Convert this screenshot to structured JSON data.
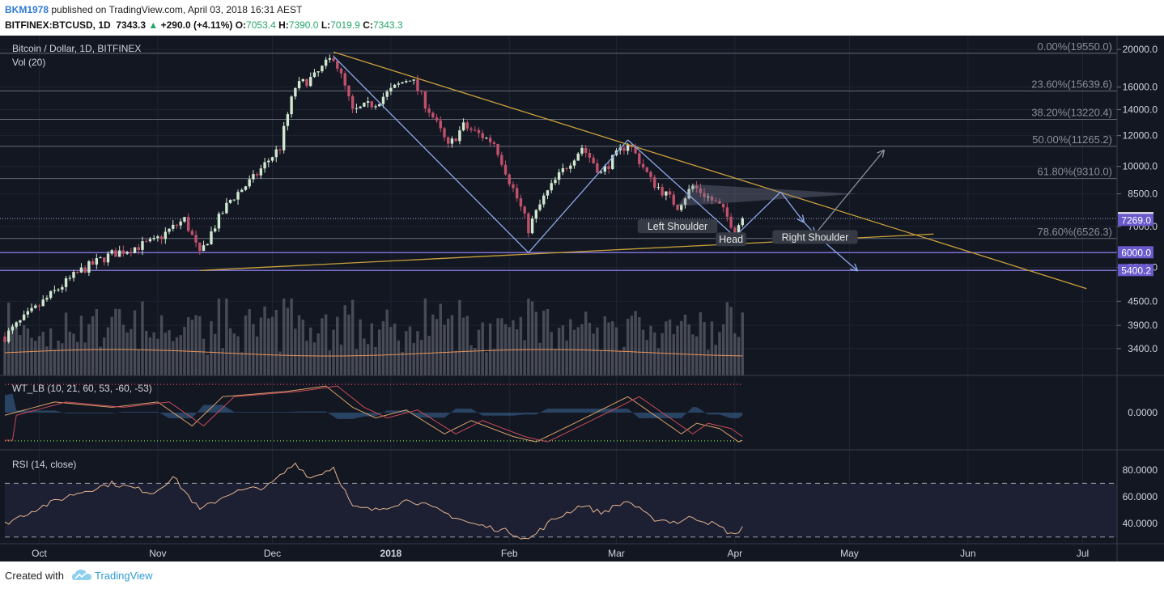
{
  "header": {
    "author": "BKM1978",
    "published_text": " published on TradingView.com, April 03, 2018 16:31 AEST",
    "symbol": "BITFINEX:BTCUSD, 1D",
    "last": "7343.3",
    "arrow": "▲",
    "change": "+290.0 (+4.11%)",
    "open_label": "O:",
    "open": "7053.4",
    "high_label": "H:",
    "high": "7390.0",
    "low_label": "L:",
    "low": "7019.9",
    "close_label": "C:",
    "close": "7343.3"
  },
  "footer": {
    "created_with": "Created with",
    "brand": "TradingView"
  },
  "colors": {
    "background": "#131722",
    "grid": "#1f2433",
    "up": "#cfe8cf",
    "down": "#c1506a",
    "trendline": "#c9a13a",
    "pattern": "#8ea7e8",
    "fib": "#666b7a",
    "level_purple": "#7c6fd0",
    "volume": "#5b5e68",
    "vol_ma": "#e6935a",
    "rsi": "#e3b48f"
  },
  "chart_data": {
    "type": "candlestick",
    "title": "Bitcoin / Dollar, 1D, BITFINEX",
    "price_axis": {
      "scale": "log",
      "range": [
        2900,
        21500
      ],
      "ticks": [
        "20000.0",
        "16000.0",
        "14000.0",
        "12000.0",
        "10000.0",
        "8500.0",
        "7000.0",
        "5500.0",
        "4500.0",
        "3900.0",
        "3400.0"
      ]
    },
    "time_axis": {
      "labels": [
        {
          "text": "Oct",
          "date": "2017-10-01"
        },
        {
          "text": "Nov",
          "date": "2017-11-01"
        },
        {
          "text": "Dec",
          "date": "2017-12-01"
        },
        {
          "text": "2018",
          "date": "2018-01-01",
          "bold": true
        },
        {
          "text": "Feb",
          "date": "2018-02-01"
        },
        {
          "text": "Mar",
          "date": "2018-03-01"
        },
        {
          "text": "Apr",
          "date": "2018-04-01"
        },
        {
          "text": "May",
          "date": "2018-05-01"
        },
        {
          "text": "Jun",
          "date": "2018-06-01"
        },
        {
          "text": "Jul",
          "date": "2018-07-01"
        }
      ]
    },
    "price_path": [
      [
        "2017-09-22",
        3650
      ],
      [
        "2017-09-30",
        4300
      ],
      [
        "2017-10-12",
        5400
      ],
      [
        "2017-10-20",
        5950
      ],
      [
        "2017-10-31",
        6400
      ],
      [
        "2017-11-08",
        7300
      ],
      [
        "2017-11-12",
        5900
      ],
      [
        "2017-11-20",
        8200
      ],
      [
        "2017-11-26",
        9300
      ],
      [
        "2017-12-03",
        11200
      ],
      [
        "2017-12-07",
        16000
      ],
      [
        "2017-12-12",
        17000
      ],
      [
        "2017-12-17",
        19200
      ],
      [
        "2017-12-22",
        13800
      ],
      [
        "2017-12-28",
        14600
      ],
      [
        "2018-01-06",
        17000
      ],
      [
        "2018-01-10",
        14500
      ],
      [
        "2018-01-16",
        11200
      ],
      [
        "2018-01-20",
        12700
      ],
      [
        "2018-01-28",
        11500
      ],
      [
        "2018-02-01",
        9200
      ],
      [
        "2018-02-06",
        6900
      ],
      [
        "2018-02-10",
        8300
      ],
      [
        "2018-02-20",
        11200
      ],
      [
        "2018-02-25",
        9600
      ],
      [
        "2018-03-04",
        11500
      ],
      [
        "2018-03-10",
        9200
      ],
      [
        "2018-03-17",
        7900
      ],
      [
        "2018-03-21",
        8900
      ],
      [
        "2018-03-28",
        7900
      ],
      [
        "2018-04-01",
        6900
      ],
      [
        "2018-04-03",
        7343
      ]
    ],
    "last_price": 7343.3,
    "price_labels": [
      {
        "text": "7343.3",
        "value": 7343.3,
        "style": "last"
      },
      {
        "text": "7269.0",
        "value": 7269.0,
        "style": "purple"
      },
      {
        "text": "6000.0",
        "value": 6000.0,
        "style": "purple"
      },
      {
        "text": "5400.2",
        "value": 5400.2,
        "style": "purple"
      }
    ],
    "fib_levels": [
      {
        "label": "0.00%(19550.0)",
        "value": 19550.0
      },
      {
        "label": "23.60%(15639.6)",
        "value": 15639.6
      },
      {
        "label": "38.20%(13220.4)",
        "value": 13220.4
      },
      {
        "label": "50.00%(11265.2)",
        "value": 11265.2
      },
      {
        "label": "61.80%(9310.0)",
        "value": 9310.0
      },
      {
        "label": "78.60%(6526.3)",
        "value": 6526.3
      }
    ],
    "horizontal_levels": [
      6000.0,
      5400.2
    ],
    "trendlines": [
      {
        "from": [
          "2017-12-17",
          19700
        ],
        "to": [
          "2018-07-02",
          4850
        ]
      },
      {
        "from": [
          "2017-11-12",
          5400
        ],
        "to": [
          "2018-05-23",
          6700
        ]
      }
    ],
    "patterns": [
      {
        "type": "w-projection",
        "points": [
          [
            "2017-12-17",
            19200
          ],
          [
            "2018-02-06",
            6000
          ],
          [
            "2018-03-04",
            11700
          ],
          [
            "2018-04-01",
            6600
          ],
          [
            "2018-04-13",
            8600
          ],
          [
            "2018-04-19",
            7200
          ],
          [
            "2018-04-22",
            6700
          ],
          [
            "2018-05-03",
            5400
          ]
        ]
      },
      {
        "type": "target-arrow",
        "points": [
          [
            "2018-04-22",
            6700
          ],
          [
            "2018-05-10",
            11000
          ]
        ]
      }
    ],
    "annotations": [
      {
        "text": "Left Shoulder",
        "date": "2018-03-17",
        "value": 7000
      },
      {
        "text": "Head",
        "date": "2018-03-31",
        "value": 6480
      },
      {
        "text": "Right Shoulder",
        "date": "2018-04-22",
        "value": 6570
      }
    ],
    "volume": {
      "label": "Vol (20)"
    },
    "wt": {
      "label": "WT_LB (10, 21, 60, 53, -60, -53)",
      "tick": "0.0000",
      "range": [
        -70,
        70
      ],
      "overbought": 53,
      "oversold": -53,
      "path": [
        [
          "2017-09-22",
          -5
        ],
        [
          "2017-10-05",
          20
        ],
        [
          "2017-10-20",
          10
        ],
        [
          "2017-11-01",
          20
        ],
        [
          "2017-11-10",
          -25
        ],
        [
          "2017-11-18",
          30
        ],
        [
          "2017-12-05",
          40
        ],
        [
          "2017-12-15",
          50
        ],
        [
          "2017-12-22",
          10
        ],
        [
          "2017-12-28",
          -10
        ],
        [
          "2018-01-05",
          5
        ],
        [
          "2018-01-15",
          -40
        ],
        [
          "2018-01-22",
          -15
        ],
        [
          "2018-02-02",
          -45
        ],
        [
          "2018-02-08",
          -55
        ],
        [
          "2018-02-18",
          -20
        ],
        [
          "2018-02-25",
          5
        ],
        [
          "2018-03-04",
          30
        ],
        [
          "2018-03-12",
          -10
        ],
        [
          "2018-03-18",
          -40
        ],
        [
          "2018-03-22",
          -20
        ],
        [
          "2018-03-28",
          -30
        ],
        [
          "2018-04-02",
          -55
        ],
        [
          "2018-04-03",
          -52
        ]
      ]
    },
    "rsi": {
      "label": "RSI (14, close)",
      "range": [
        25,
        95
      ],
      "ticks": [
        "80.0000",
        "60.0000",
        "40.0000"
      ],
      "upper": 70,
      "lower": 30,
      "path": [
        [
          "2017-09-22",
          40
        ],
        [
          "2017-10-01",
          52
        ],
        [
          "2017-10-10",
          62
        ],
        [
          "2017-10-20",
          70
        ],
        [
          "2017-10-31",
          63
        ],
        [
          "2017-11-05",
          75
        ],
        [
          "2017-11-12",
          50
        ],
        [
          "2017-11-20",
          63
        ],
        [
          "2017-11-30",
          68
        ],
        [
          "2017-12-07",
          85
        ],
        [
          "2017-12-11",
          74
        ],
        [
          "2017-12-17",
          82
        ],
        [
          "2017-12-22",
          52
        ],
        [
          "2017-12-28",
          50
        ],
        [
          "2018-01-06",
          58
        ],
        [
          "2018-01-15",
          48
        ],
        [
          "2018-01-22",
          40
        ],
        [
          "2018-02-01",
          34
        ],
        [
          "2018-02-06",
          28
        ],
        [
          "2018-02-12",
          42
        ],
        [
          "2018-02-20",
          54
        ],
        [
          "2018-02-25",
          48
        ],
        [
          "2018-03-04",
          57
        ],
        [
          "2018-03-10",
          44
        ],
        [
          "2018-03-17",
          41
        ],
        [
          "2018-03-21",
          45
        ],
        [
          "2018-03-27",
          39
        ],
        [
          "2018-04-01",
          31
        ],
        [
          "2018-04-03",
          38
        ]
      ]
    }
  }
}
